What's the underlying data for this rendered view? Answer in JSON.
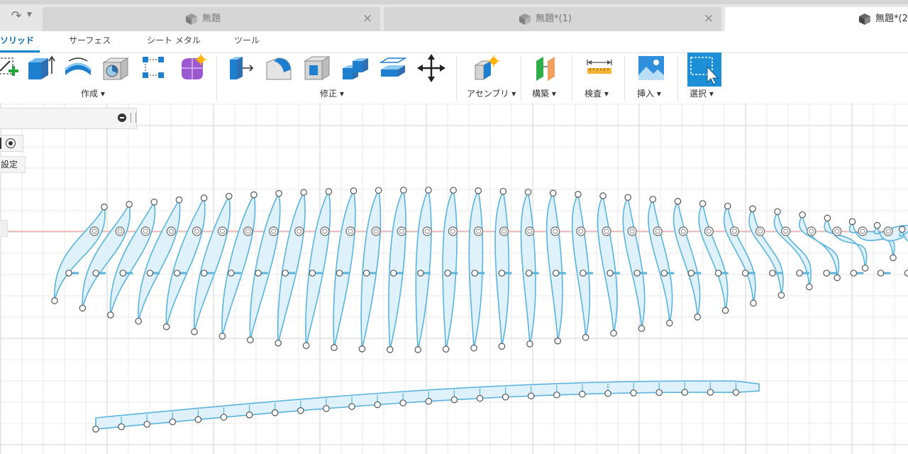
{
  "tabs": [
    {
      "label": "無題",
      "active": false
    },
    {
      "label": "無題*(1)",
      "active": false
    },
    {
      "label": "無題*(2",
      "active": true
    }
  ],
  "close_glyph": "×",
  "nav": {
    "redo_icon": "redo-arrow-icon",
    "redo_glyph": "↷",
    "caret_glyph": "▼"
  },
  "ribbon": {
    "mode_tabs": [
      "ソリッド",
      "サーフェス",
      "シート メタル",
      "ツール"
    ],
    "groups": {
      "create": "作成 ▾",
      "modify": "修正 ▾",
      "assemble": "アセンブリ ▾",
      "construct": "構築 ▾",
      "inspect": "検査 ▾",
      "insert": "挿入 ▾",
      "select": "選択 ▾"
    }
  },
  "browser": {
    "settings_label": "設定"
  },
  "colors": {
    "accent": "#0a84c8",
    "sketch_line": "#5ab4dc",
    "profile_fill": "#dff1fb",
    "axis_red": "#f2b6b6",
    "grid": "#e8e8e8",
    "grid_major": "#d2d2d2"
  }
}
